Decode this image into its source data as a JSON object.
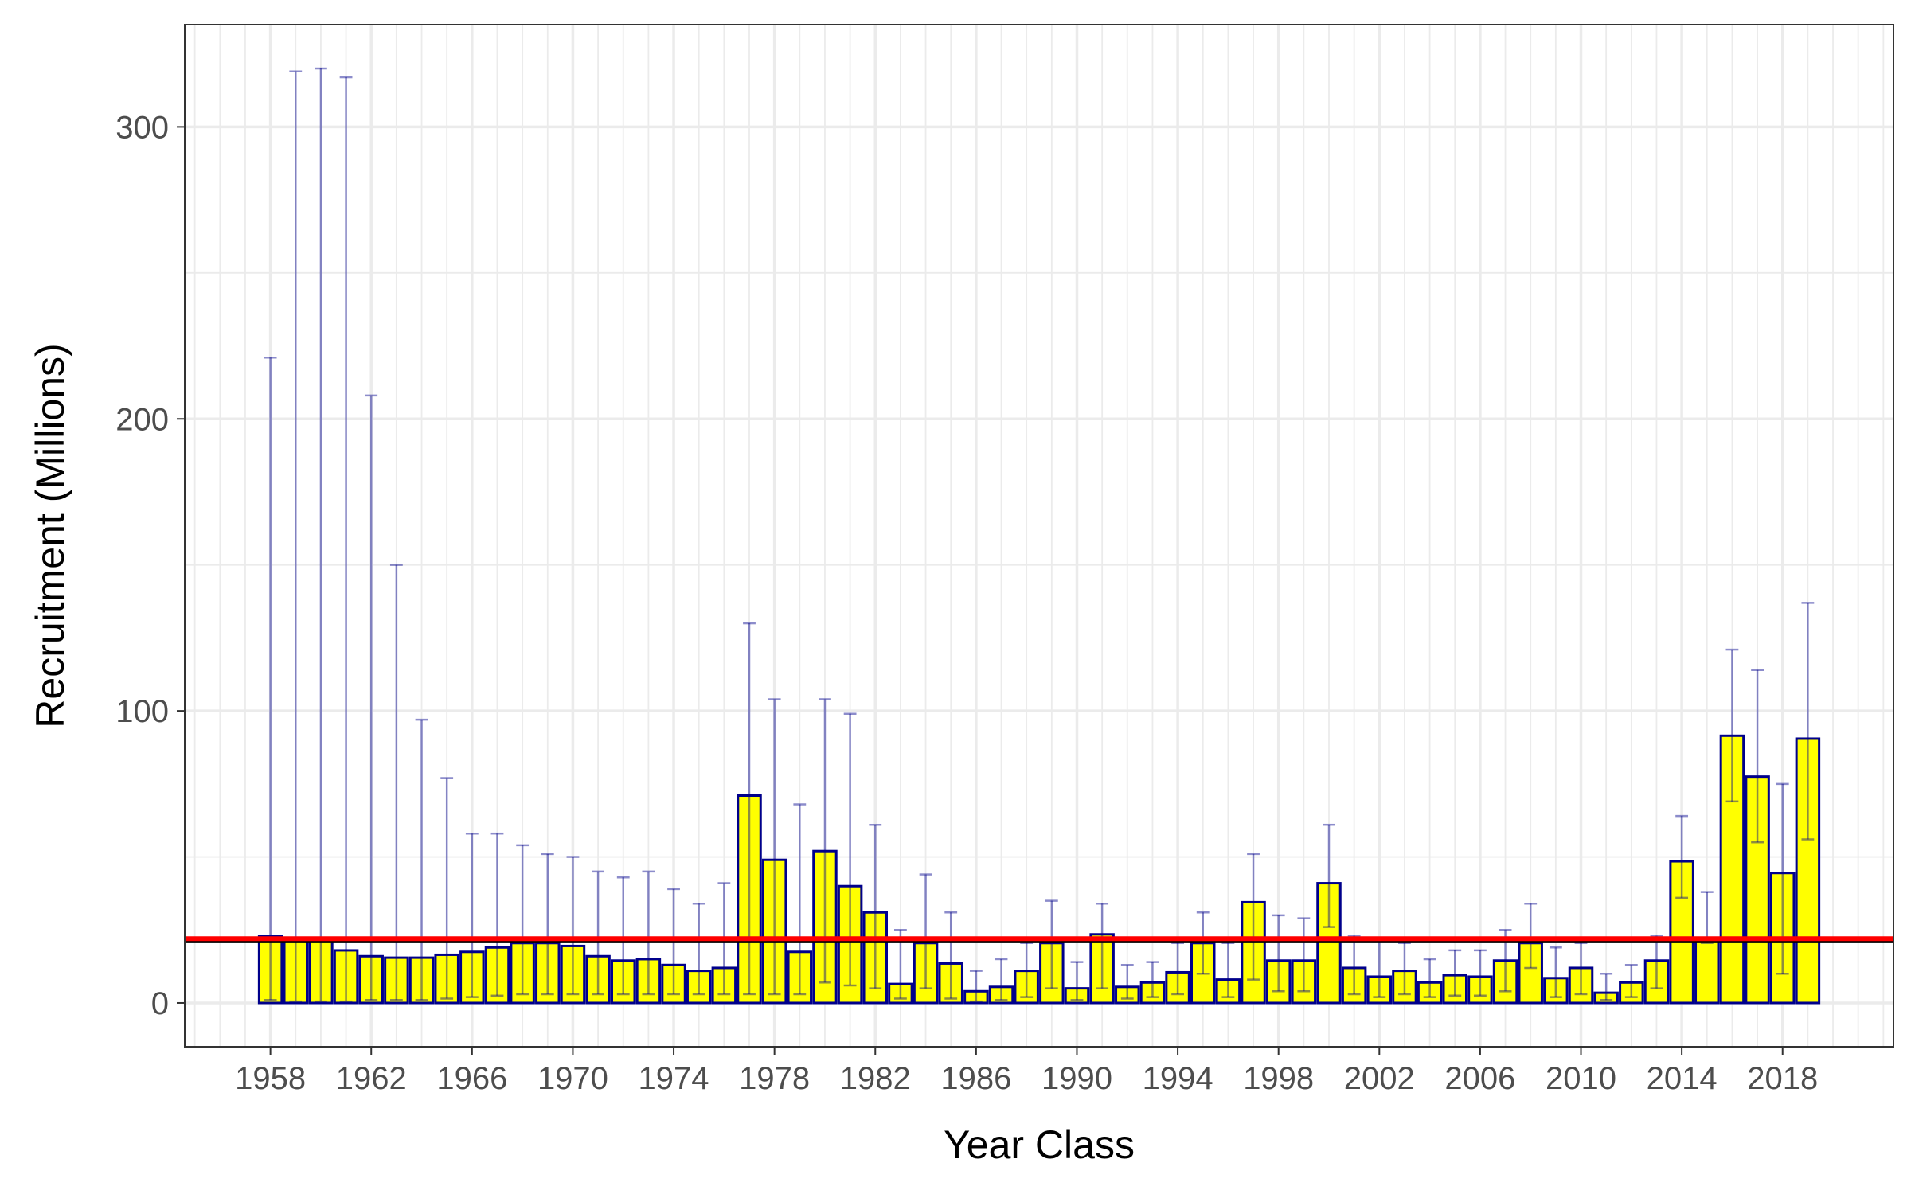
{
  "chart_data": {
    "type": "bar",
    "title": "",
    "xlabel": "Year Class",
    "ylabel": "Recruitment (Millions)",
    "x_tick_labels": [
      "1958",
      "1962",
      "1966",
      "1970",
      "1974",
      "1978",
      "1982",
      "1986",
      "1990",
      "1994",
      "1998",
      "2002",
      "2006",
      "2010",
      "2014",
      "2018"
    ],
    "y_tick_labels": [
      "0",
      "100",
      "200",
      "300"
    ],
    "ylim": [
      -15,
      335
    ],
    "xlim": [
      1954.6,
      2022.4
    ],
    "grid": true,
    "years": [
      1958,
      1959,
      1960,
      1961,
      1962,
      1963,
      1964,
      1965,
      1966,
      1967,
      1968,
      1969,
      1970,
      1971,
      1972,
      1973,
      1974,
      1975,
      1976,
      1977,
      1978,
      1979,
      1980,
      1981,
      1982,
      1983,
      1984,
      1985,
      1986,
      1987,
      1988,
      1989,
      1990,
      1991,
      1992,
      1993,
      1994,
      1995,
      1996,
      1997,
      1998,
      1999,
      2000,
      2001,
      2002,
      2003,
      2004,
      2005,
      2006,
      2007,
      2008,
      2009,
      2010,
      2011,
      2012,
      2013,
      2014,
      2015,
      2016,
      2017,
      2018,
      2019
    ],
    "values": [
      23,
      21,
      21,
      18,
      16,
      15.5,
      15.5,
      16.5,
      17.5,
      19,
      20.5,
      20.5,
      19.5,
      16,
      14.5,
      15,
      13,
      11,
      12,
      71,
      49,
      17.5,
      52,
      40,
      31,
      6.5,
      20.5,
      13.5,
      4,
      5.5,
      11,
      20.5,
      5,
      23.5,
      5.5,
      7,
      10.5,
      20.5,
      8,
      34.5,
      14.5,
      14.5,
      41,
      12,
      9,
      11,
      7,
      9.5,
      9,
      14.5,
      20.5,
      8.5,
      12,
      3.5,
      7,
      14.5,
      48.5,
      21,
      91.5,
      77.5,
      44.5,
      90.5
    ],
    "error_upper": [
      221,
      319,
      320,
      317,
      208,
      150,
      97,
      77,
      58,
      58,
      54,
      51,
      50,
      45,
      43,
      45,
      39,
      34,
      41,
      130,
      104,
      68,
      104,
      99,
      61,
      25,
      44,
      31,
      11,
      15,
      20.5,
      35,
      14,
      34,
      13,
      14,
      20.5,
      31,
      20.5,
      51,
      30,
      29,
      61,
      23,
      21,
      20.5,
      15,
      18,
      18,
      25,
      34,
      19,
      20.5,
      10,
      13,
      23,
      64,
      38,
      121,
      114,
      75,
      137
    ],
    "error_lower": [
      1,
      0.5,
      0.5,
      0.5,
      1,
      1,
      1,
      1.5,
      2,
      2.5,
      3,
      3,
      3,
      3,
      3,
      3,
      3,
      3,
      3,
      3,
      3,
      3,
      7,
      6,
      5,
      1.5,
      5,
      1.5,
      0.5,
      1,
      2,
      5,
      1,
      5,
      1.5,
      2,
      3,
      10,
      2,
      8,
      4,
      4,
      26,
      3,
      2,
      3,
      2,
      2.5,
      2.5,
      4,
      12,
      2,
      3,
      1,
      2,
      5,
      36,
      20.5,
      69,
      55,
      10,
      56
    ],
    "reference_lines": [
      {
        "value": 21.3,
        "color": "#000000"
      },
      {
        "value": 22.0,
        "color": "#ff0000"
      }
    ],
    "colors": {
      "bar_fill": "#ffff00",
      "bar_outline": "#00008b",
      "error_bar": "#00008b",
      "grid": "#ebebeb",
      "panel_border": "#333333"
    }
  }
}
